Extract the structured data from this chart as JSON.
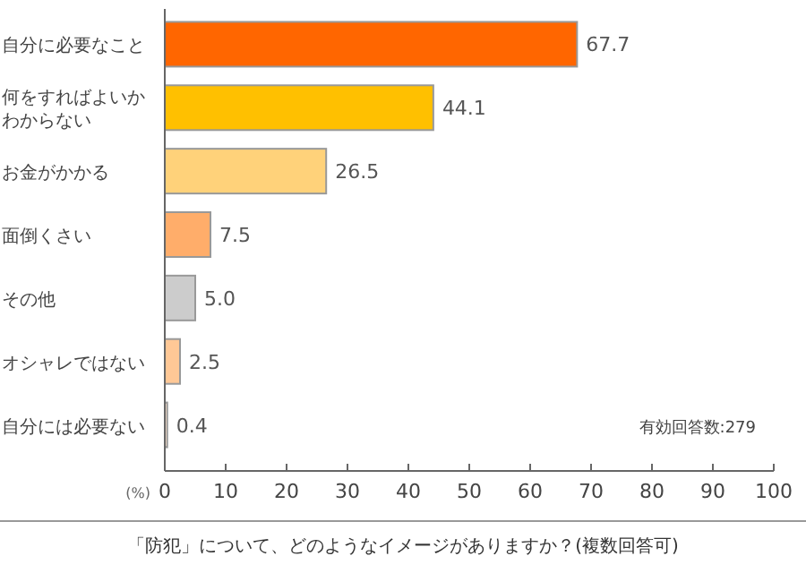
{
  "chart_data": {
    "type": "bar",
    "orientation": "horizontal",
    "title": "「防犯」について、どのようなイメージがありますか？(複数回答可)",
    "xlabel": "(%)",
    "categories": [
      "自分に必要なこと",
      "何をすればよいかわからない",
      "お金がかかる",
      "面倒くさい",
      "その他",
      "オシャレではない",
      "自分には必要ない"
    ],
    "values": [
      67.7,
      44.1,
      26.5,
      7.5,
      5.0,
      2.5,
      0.4
    ],
    "value_labels": [
      "67.7",
      "44.1",
      "26.5",
      "7.5",
      "5.0",
      "2.5",
      "0.4"
    ],
    "colors": [
      "#ff6600",
      "#ffc000",
      "#ffd27a",
      "#ffad6a",
      "#cccccc",
      "#ffc896",
      "#ffe4cc"
    ],
    "xlim": [
      0,
      100
    ],
    "xticks": [
      0,
      10,
      20,
      30,
      40,
      50,
      60,
      70,
      80,
      90,
      100
    ],
    "grid": false,
    "annotations": [
      "有効回答数:279"
    ]
  }
}
